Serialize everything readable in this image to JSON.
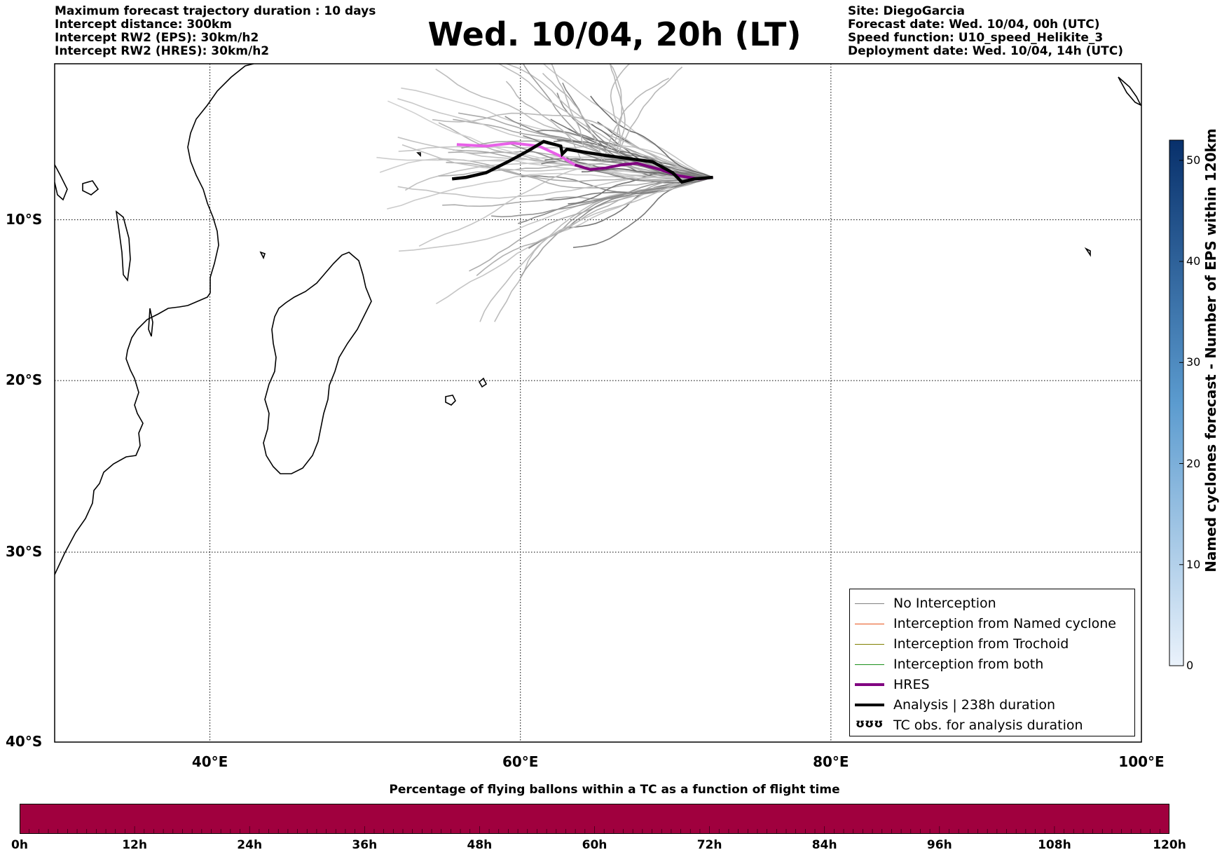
{
  "header_left": [
    "Maximum forecast trajectory duration : 10 days",
    "Intercept distance: 300km",
    "Intercept RW2 (EPS):  30km/h2",
    "Intercept RW2 (HRES): 30km/h2"
  ],
  "header_right": [
    "Site: DiegoGarcia",
    "Forecast date: Wed. 10/04, 00h (UTC)",
    "Speed function: U10_speed_Helikite_3",
    "Deployment date: Wed. 10/04, 14h (UTC)"
  ],
  "title": "Wed. 10/04, 20h (LT)",
  "map": {
    "lon_range": [
      30,
      100
    ],
    "lat_range": [
      -40,
      0
    ],
    "lon_ticks": [
      {
        "value": 40,
        "label": "40°E"
      },
      {
        "value": 60,
        "label": "60°E"
      },
      {
        "value": 80,
        "label": "80°E"
      },
      {
        "value": 100,
        "label": "100°E"
      }
    ],
    "lat_ticks": [
      {
        "value": -10,
        "label": "10°S"
      },
      {
        "value": -20,
        "label": "20°S"
      },
      {
        "value": -30,
        "label": "30°S"
      },
      {
        "value": -40,
        "label": "40°S"
      }
    ],
    "grid": true,
    "site": {
      "lon": 72.4,
      "lat": -7.3
    },
    "hres_track": [
      [
        72.4,
        -7.3
      ],
      [
        71.5,
        -7.4
      ],
      [
        70.2,
        -7.2
      ],
      [
        69.0,
        -6.8
      ],
      [
        67.5,
        -6.4
      ],
      [
        66.5,
        -6.5
      ],
      [
        65.5,
        -6.7
      ],
      [
        64.5,
        -6.8
      ],
      [
        63.5,
        -6.5
      ],
      [
        62.5,
        -5.9
      ],
      [
        61.2,
        -5.3
      ],
      [
        59.5,
        -5.1
      ],
      [
        57.8,
        -5.3
      ],
      [
        55.9,
        -5.2
      ]
    ],
    "analysis_track": [
      [
        72.4,
        -7.3
      ],
      [
        71.2,
        -7.4
      ],
      [
        70.4,
        -7.6
      ],
      [
        69.8,
        -7.0
      ],
      [
        68.5,
        -6.3
      ],
      [
        67.0,
        -6.1
      ],
      [
        65.5,
        -5.9
      ],
      [
        64.2,
        -5.7
      ],
      [
        63.0,
        -5.5
      ],
      [
        62.7,
        -5.8
      ],
      [
        62.6,
        -5.3
      ],
      [
        61.5,
        -5.0
      ],
      [
        60.5,
        -5.6
      ],
      [
        59.2,
        -6.3
      ],
      [
        57.8,
        -7.0
      ],
      [
        56.5,
        -7.3
      ],
      [
        55.6,
        -7.4
      ]
    ]
  },
  "legend": [
    {
      "label": "No Interception",
      "color": "#808080",
      "width": 1
    },
    {
      "label": "Interception from Named cyclone",
      "color": "#e8531a",
      "width": 1
    },
    {
      "label": "Interception from Trochoid",
      "color": "#7f7f00",
      "width": 1
    },
    {
      "label": "Interception from both",
      "color": "#1a8f1a",
      "width": 1
    },
    {
      "label": "HRES",
      "color": "#800080",
      "width": 4
    },
    {
      "label": "Analysis | 238h duration",
      "color": "#000000",
      "width": 4
    },
    {
      "label": "TC obs. for analysis duration",
      "icon": "tc-symbol-icon",
      "glyph": "☃☃☃"
    }
  ],
  "colorbar": {
    "label": "Named cyclones forecast - Number of EPS within 120km",
    "ticks": [
      0,
      10,
      20,
      30,
      40,
      50
    ],
    "max": 52,
    "color_low": "#e6f0fa",
    "color_high": "#08306b"
  },
  "bottom_bar": {
    "title": "Percentage of flying ballons within a TC as a function of flight time",
    "color": "#a0003e",
    "ticks": [
      "0h",
      "12h",
      "24h",
      "36h",
      "48h",
      "60h",
      "72h",
      "84h",
      "96h",
      "108h",
      "120h"
    ]
  }
}
